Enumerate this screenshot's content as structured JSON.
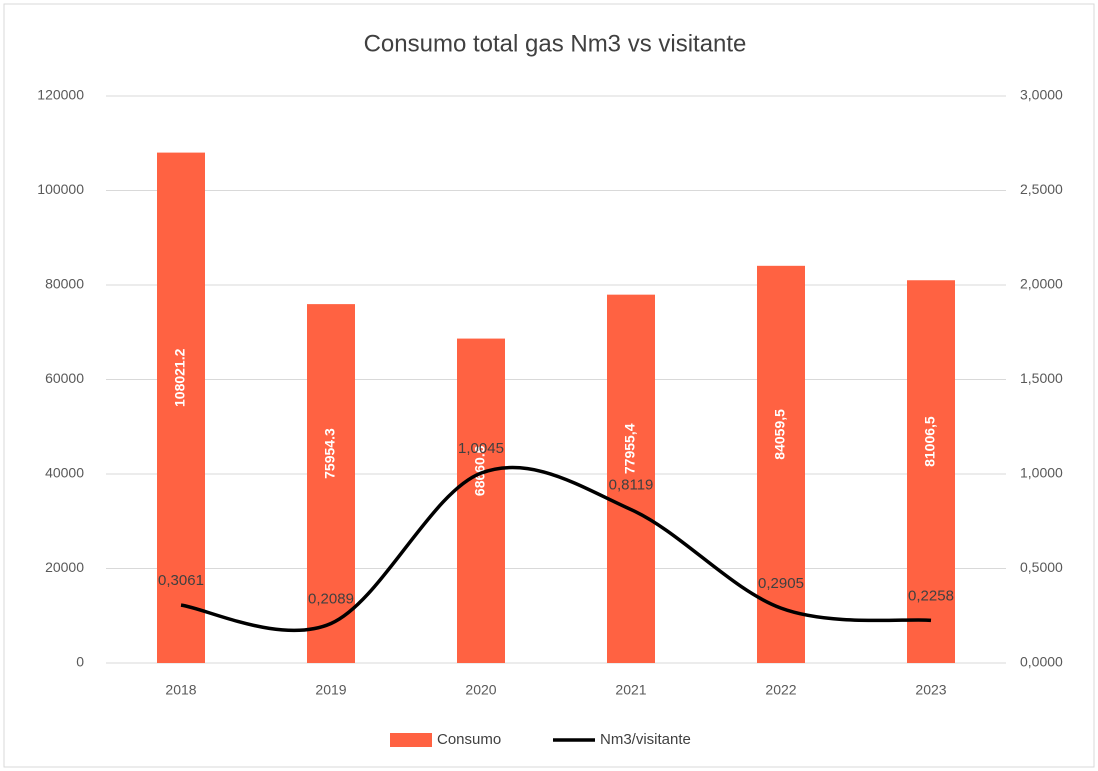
{
  "chart_data": {
    "type": "bar_line",
    "title": "Consumo total gas Nm3 vs visitante",
    "categories": [
      "2018",
      "2019",
      "2020",
      "2021",
      "2022",
      "2023"
    ],
    "series": [
      {
        "name": "Consumo",
        "type": "bar",
        "color": "#ff6242",
        "values": [
          108021.2,
          75954.3,
          68660.6,
          77955.4,
          84059.5,
          81006.5
        ],
        "value_labels": [
          "108021.2",
          "75954.3",
          "68660.6",
          "77955,4",
          "84059,5",
          "81006,5"
        ]
      },
      {
        "name": "Nm3/visitante",
        "type": "line",
        "axis": "y2",
        "color": "#000000",
        "values": [
          0.3061,
          0.2089,
          1.0045,
          0.8119,
          0.2905,
          0.2258
        ],
        "value_labels": [
          "0,3061",
          "0,2089",
          "1,0045",
          "0,8119",
          "0,2905",
          "0,2258"
        ]
      }
    ],
    "ylim": [
      0,
      120000
    ],
    "yticks": [
      0,
      20000,
      40000,
      60000,
      80000,
      100000,
      120000
    ],
    "y2lim": [
      0,
      3
    ],
    "y2ticks": [
      {
        "value": 0,
        "label": "0,0000"
      },
      {
        "value": 0.5,
        "label": "0,5000"
      },
      {
        "value": 1,
        "label": "1,0000"
      },
      {
        "value": 1.5,
        "label": "1,5000"
      },
      {
        "value": 2,
        "label": "2,0000"
      },
      {
        "value": 2.5,
        "label": "2,5000"
      },
      {
        "value": 3,
        "label": "3,0000"
      }
    ],
    "grid": true,
    "legend": "bottom"
  }
}
